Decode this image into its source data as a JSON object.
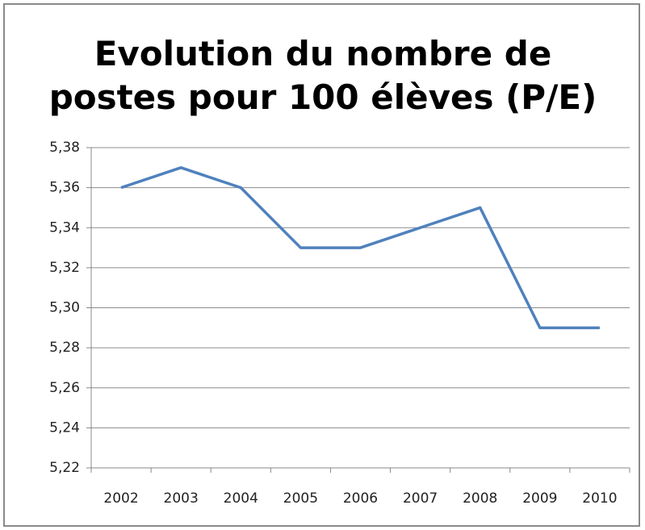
{
  "chart_data": {
    "type": "line",
    "title": "Evolution du nombre de postes pour 100 élèves (P/E)",
    "categories": [
      "2002",
      "2003",
      "2004",
      "2005",
      "2006",
      "2007",
      "2008",
      "2009",
      "2010"
    ],
    "series": [
      {
        "color": "#4f81bd",
        "values": [
          5.36,
          5.37,
          5.36,
          5.33,
          5.33,
          5.34,
          5.35,
          5.29,
          5.29
        ]
      }
    ],
    "ylim": [
      5.22,
      5.38
    ],
    "yticks": [
      {
        "value": 5.22,
        "label": "5,22"
      },
      {
        "value": 5.24,
        "label": "5,24"
      },
      {
        "value": 5.26,
        "label": "5,26"
      },
      {
        "value": 5.28,
        "label": "5,28"
      },
      {
        "value": 5.3,
        "label": "5,30"
      },
      {
        "value": 5.32,
        "label": "5,32"
      },
      {
        "value": 5.34,
        "label": "5,34"
      },
      {
        "value": 5.36,
        "label": "5,36"
      },
      {
        "value": 5.38,
        "label": "5,38"
      }
    ],
    "grid": true
  }
}
